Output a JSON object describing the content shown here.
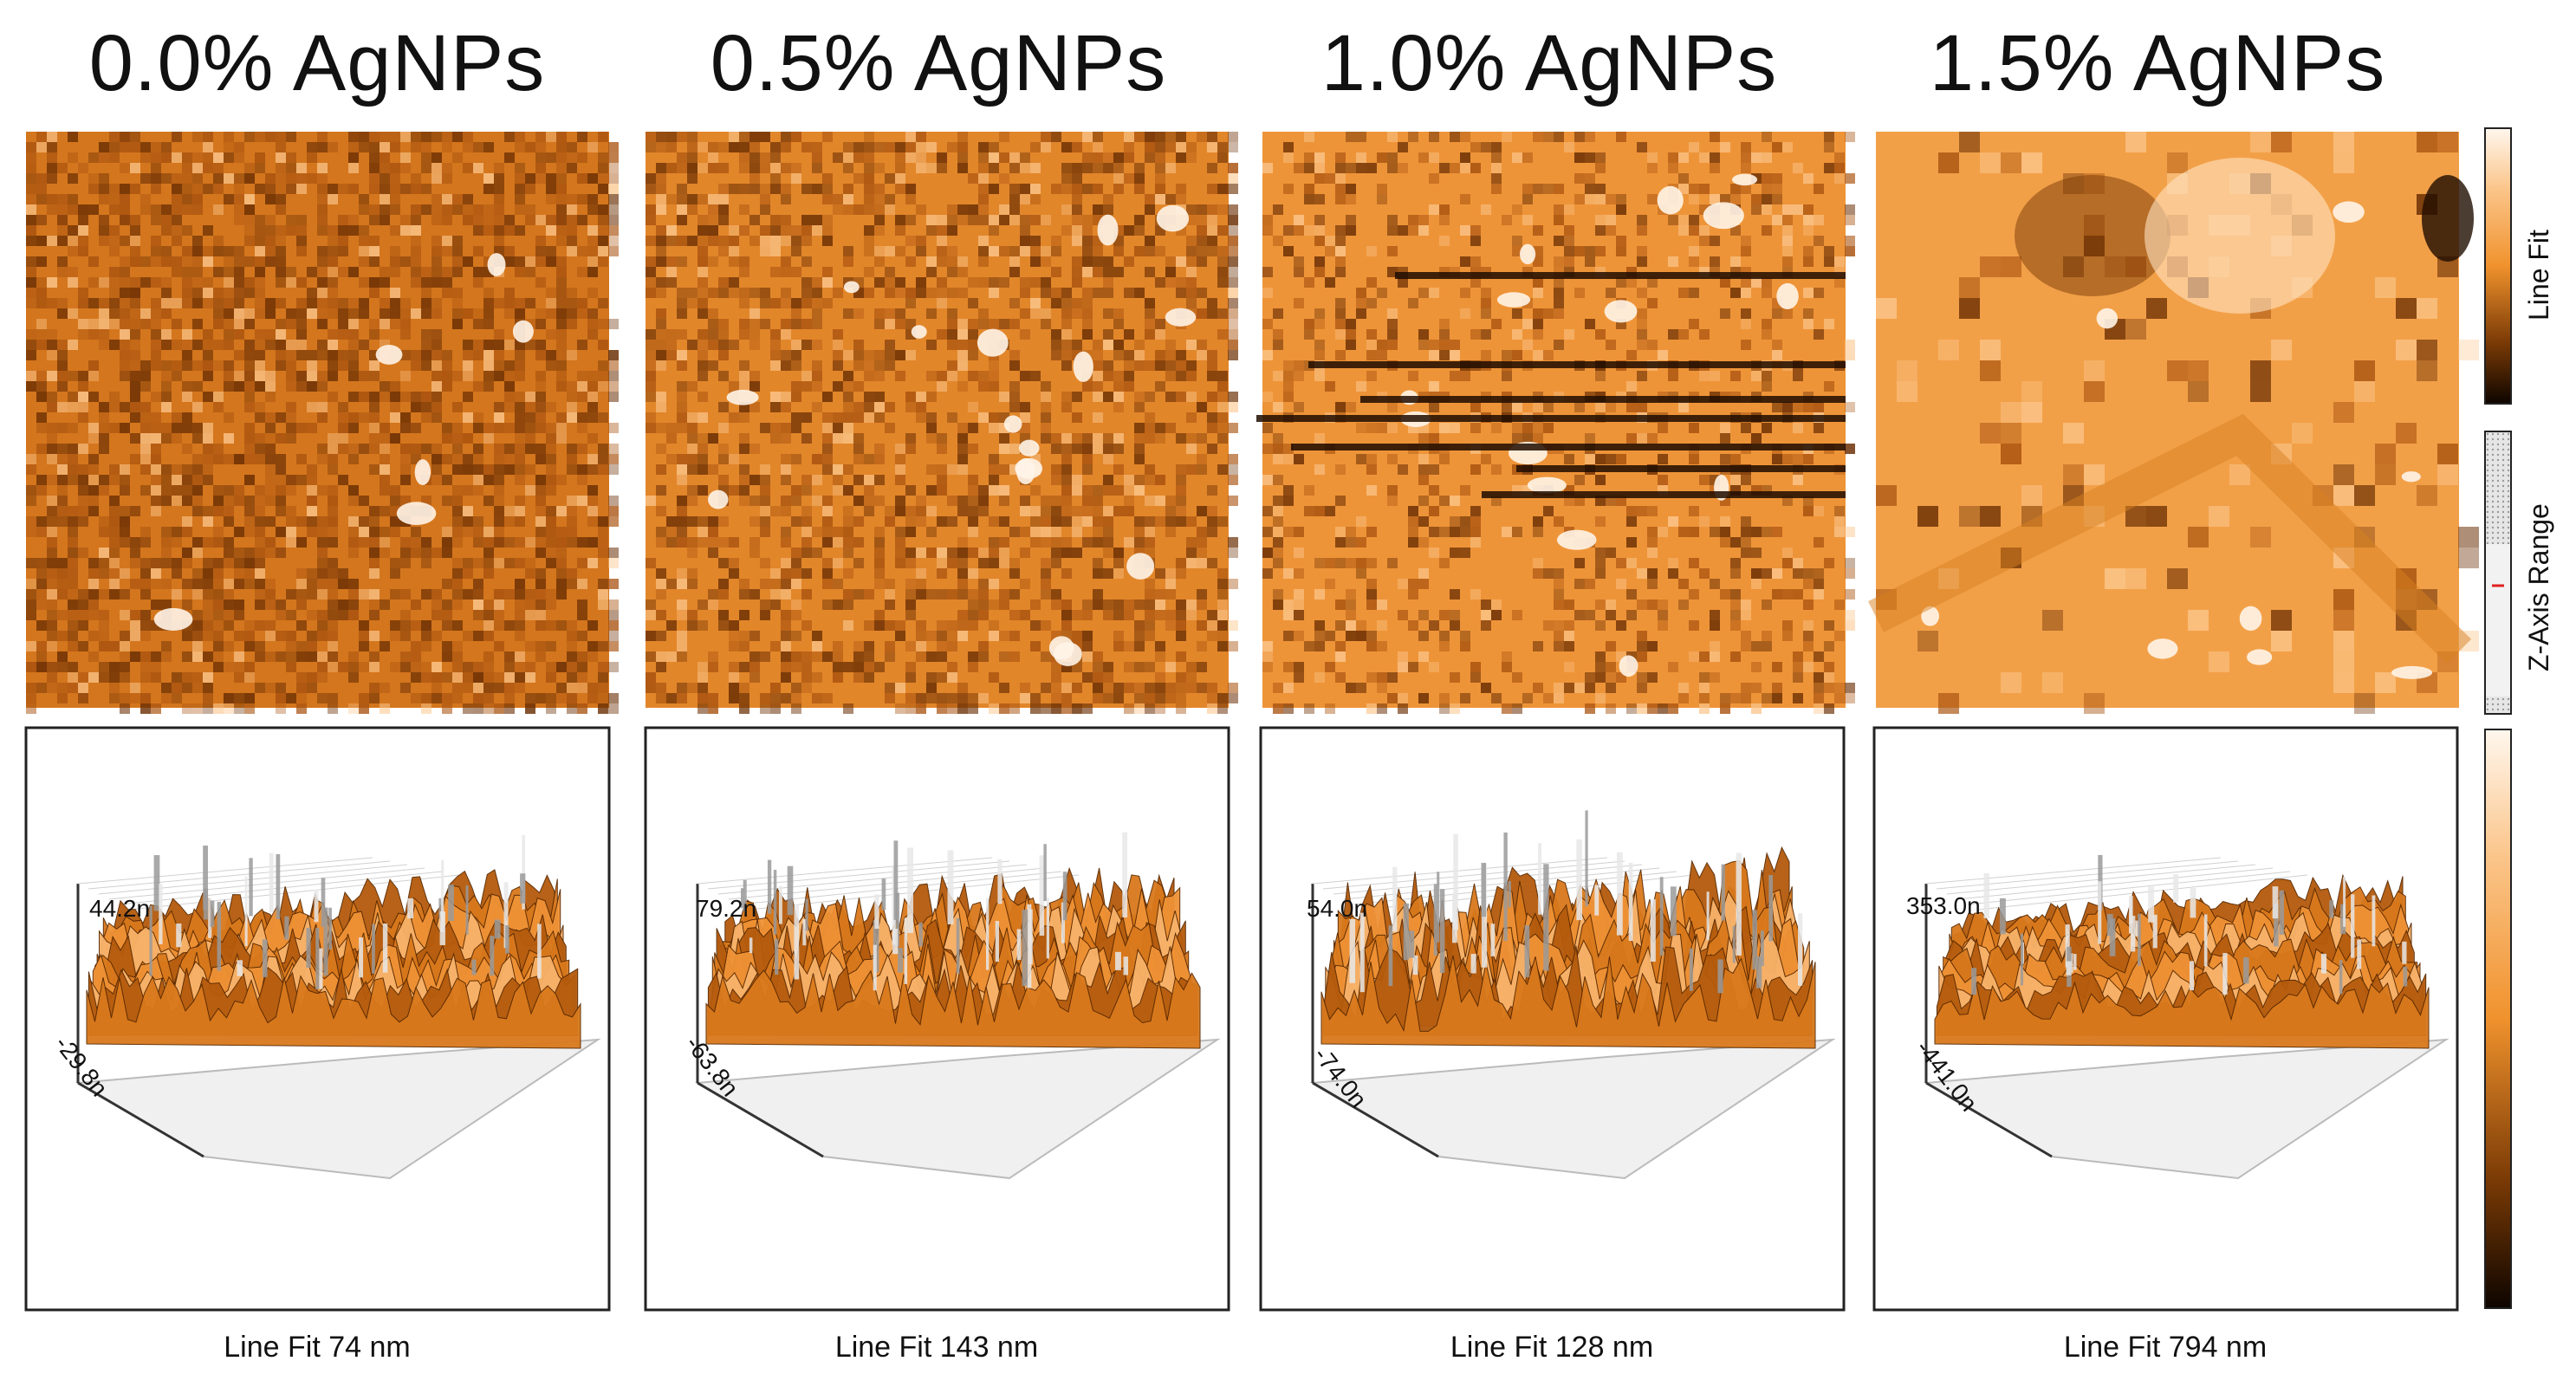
{
  "panels": [
    {
      "title": "0.0% AgNPs",
      "zmax": "44.2n",
      "zmin": "-29.8n",
      "caption": "Line Fit 74 nm"
    },
    {
      "title": "0.5% AgNPs",
      "zmax": "79.2n",
      "zmin": "-63.8n",
      "caption": "Line Fit 143 nm"
    },
    {
      "title": "1.0% AgNPs",
      "zmax": "54.0n",
      "zmin": "-74.0n",
      "caption": "Line Fit 128 nm"
    },
    {
      "title": "1.5% AgNPs",
      "zmax": "353.0n",
      "zmin": "-441.0n",
      "caption": "Line Fit 794 nm"
    }
  ],
  "colorbar": {
    "line_fit_label": "Line Fit",
    "z_axis_label": "Z-Axis Range"
  },
  "colors": {
    "dark": "#1a0a00",
    "mid": "#f0922d",
    "light": "#fff3e4",
    "frame": "#222222"
  }
}
